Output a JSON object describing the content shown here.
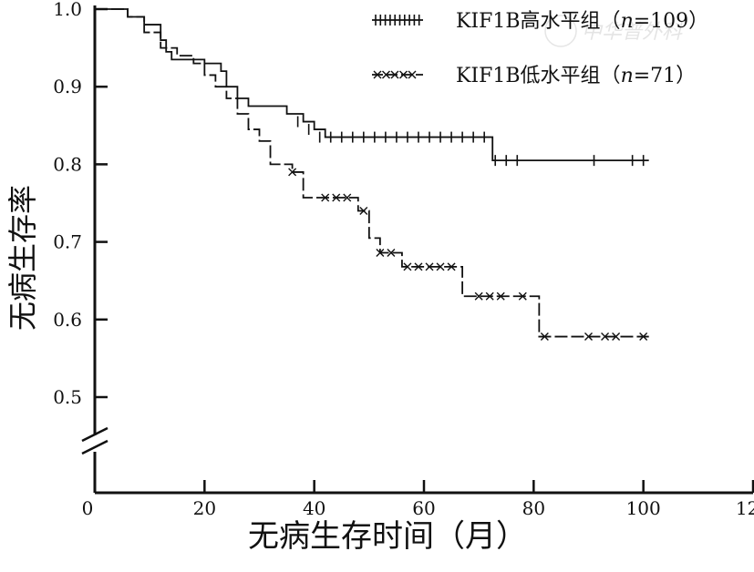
{
  "chart_data": {
    "type": "line",
    "subtype": "kaplan-meier",
    "title": "",
    "xlabel": "无病生存时间（月）",
    "ylabel": "无病生存率",
    "xlim": [
      0,
      120
    ],
    "ylim": [
      0.5,
      1.0
    ],
    "y_axis_break": true,
    "x_ticks": [
      0,
      20,
      40,
      60,
      80,
      100,
      120
    ],
    "y_ticks": [
      "0.5",
      "0.6",
      "0.7",
      "0.8",
      "0.9",
      "1.0"
    ],
    "grid": false,
    "legend_position": "top-right",
    "series": [
      {
        "name": "KIF1B高水平组（n=109）",
        "legend_text": "KIF1B高水平组（",
        "legend_n": "n",
        "legend_value": "=109）",
        "marker": "+",
        "line_style": "solid",
        "color": "#111111",
        "steps": [
          [
            0,
            1.0
          ],
          [
            3,
            1.0
          ],
          [
            6,
            0.99
          ],
          [
            9,
            0.98
          ],
          [
            12,
            0.96
          ],
          [
            13,
            0.945
          ],
          [
            14,
            0.935
          ],
          [
            18,
            0.935
          ],
          [
            20,
            0.93
          ],
          [
            23,
            0.92
          ],
          [
            24,
            0.9
          ],
          [
            26,
            0.885
          ],
          [
            28,
            0.875
          ],
          [
            32,
            0.875
          ],
          [
            35,
            0.865
          ],
          [
            38,
            0.855
          ],
          [
            40,
            0.845
          ],
          [
            42,
            0.835
          ],
          [
            72,
            0.835
          ],
          [
            72.5,
            0.805
          ],
          [
            101,
            0.805
          ]
        ],
        "censored": [
          [
            37,
            0.855
          ],
          [
            39,
            0.845
          ],
          [
            41,
            0.835
          ],
          [
            43,
            0.835
          ],
          [
            45,
            0.835
          ],
          [
            47,
            0.835
          ],
          [
            49,
            0.835
          ],
          [
            51,
            0.835
          ],
          [
            53,
            0.835
          ],
          [
            55,
            0.835
          ],
          [
            57,
            0.835
          ],
          [
            59,
            0.835
          ],
          [
            61,
            0.835
          ],
          [
            63,
            0.835
          ],
          [
            65,
            0.835
          ],
          [
            67,
            0.835
          ],
          [
            69,
            0.835
          ],
          [
            71,
            0.835
          ],
          [
            73,
            0.805
          ],
          [
            75,
            0.805
          ],
          [
            77,
            0.805
          ],
          [
            91,
            0.805
          ],
          [
            98,
            0.805
          ],
          [
            100,
            0.805
          ]
        ]
      },
      {
        "name": "KIF1B低水平组（n=71）",
        "legend_text": "KIF1B低水平组（",
        "legend_n": "n",
        "legend_value": "=71）",
        "marker": "x",
        "line_style": "dashed",
        "color": "#111111",
        "steps": [
          [
            0,
            1.0
          ],
          [
            3,
            1.0
          ],
          [
            6,
            0.99
          ],
          [
            9,
            0.97
          ],
          [
            12,
            0.95
          ],
          [
            15,
            0.94
          ],
          [
            18,
            0.93
          ],
          [
            20,
            0.915
          ],
          [
            22,
            0.9
          ],
          [
            24,
            0.885
          ],
          [
            26,
            0.865
          ],
          [
            28,
            0.845
          ],
          [
            30,
            0.83
          ],
          [
            32,
            0.8
          ],
          [
            36,
            0.79
          ],
          [
            38,
            0.757
          ],
          [
            48,
            0.74
          ],
          [
            50,
            0.705
          ],
          [
            52,
            0.686
          ],
          [
            56,
            0.668
          ],
          [
            67,
            0.63
          ],
          [
            81,
            0.578
          ],
          [
            101,
            0.578
          ]
        ],
        "censored": [
          [
            36,
            0.79
          ],
          [
            42,
            0.757
          ],
          [
            44,
            0.757
          ],
          [
            46,
            0.757
          ],
          [
            49,
            0.74
          ],
          [
            52,
            0.686
          ],
          [
            54,
            0.686
          ],
          [
            57,
            0.668
          ],
          [
            59,
            0.668
          ],
          [
            61,
            0.668
          ],
          [
            63,
            0.668
          ],
          [
            65,
            0.668
          ],
          [
            70,
            0.63
          ],
          [
            72,
            0.63
          ],
          [
            74,
            0.63
          ],
          [
            78,
            0.63
          ],
          [
            82,
            0.578
          ],
          [
            90,
            0.578
          ],
          [
            93,
            0.578
          ],
          [
            95,
            0.578
          ],
          [
            100,
            0.578
          ]
        ]
      }
    ]
  },
  "watermark": "中华普外科"
}
